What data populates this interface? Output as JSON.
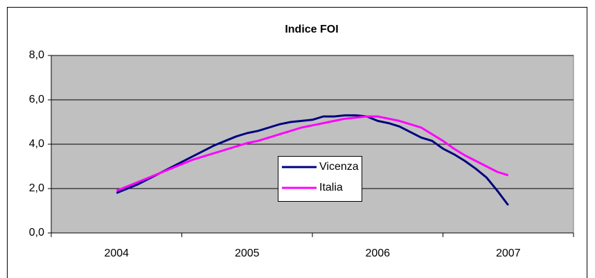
{
  "chart_data": {
    "type": "line",
    "title": "Indice FOI",
    "categories": [
      "2004",
      null,
      null,
      null,
      null,
      null,
      null,
      null,
      null,
      null,
      null,
      null,
      "2005",
      null,
      null,
      null,
      null,
      null,
      null,
      null,
      null,
      null,
      null,
      null,
      "2006",
      null,
      null,
      null,
      null,
      null,
      null,
      null,
      null,
      null,
      null,
      null,
      "2007"
    ],
    "series": [
      {
        "name": "Vicenza",
        "color": "#000080",
        "values": [
          1.8,
          2.0,
          2.2,
          2.45,
          2.7,
          2.95,
          3.2,
          3.45,
          3.7,
          3.95,
          4.15,
          4.35,
          4.5,
          4.6,
          4.75,
          4.9,
          5.0,
          5.05,
          5.1,
          5.25,
          5.25,
          5.3,
          5.3,
          5.25,
          5.05,
          4.95,
          4.8,
          4.55,
          4.3,
          4.15,
          3.8,
          3.55,
          3.25,
          2.9,
          2.5,
          1.9,
          1.25
        ]
      },
      {
        "name": "Italia",
        "color": "#ff00ff",
        "values": [
          1.9,
          2.1,
          2.3,
          2.5,
          2.7,
          2.9,
          3.1,
          3.3,
          3.45,
          3.6,
          3.75,
          3.9,
          4.05,
          4.15,
          4.3,
          4.45,
          4.6,
          4.75,
          4.85,
          4.95,
          5.05,
          5.15,
          5.2,
          5.25,
          5.25,
          5.15,
          5.05,
          4.9,
          4.75,
          4.45,
          4.15,
          3.8,
          3.5,
          3.25,
          3.0,
          2.75,
          2.6
        ]
      }
    ],
    "ylim": [
      0,
      8
    ],
    "yticks": [
      {
        "value": 0,
        "label": "0,0"
      },
      {
        "value": 2,
        "label": "2,0"
      },
      {
        "value": 4,
        "label": "4,0"
      },
      {
        "value": 6,
        "label": "6,0"
      },
      {
        "value": 8,
        "label": "8,0"
      }
    ],
    "grid": true,
    "background": "#c0c0c0"
  }
}
